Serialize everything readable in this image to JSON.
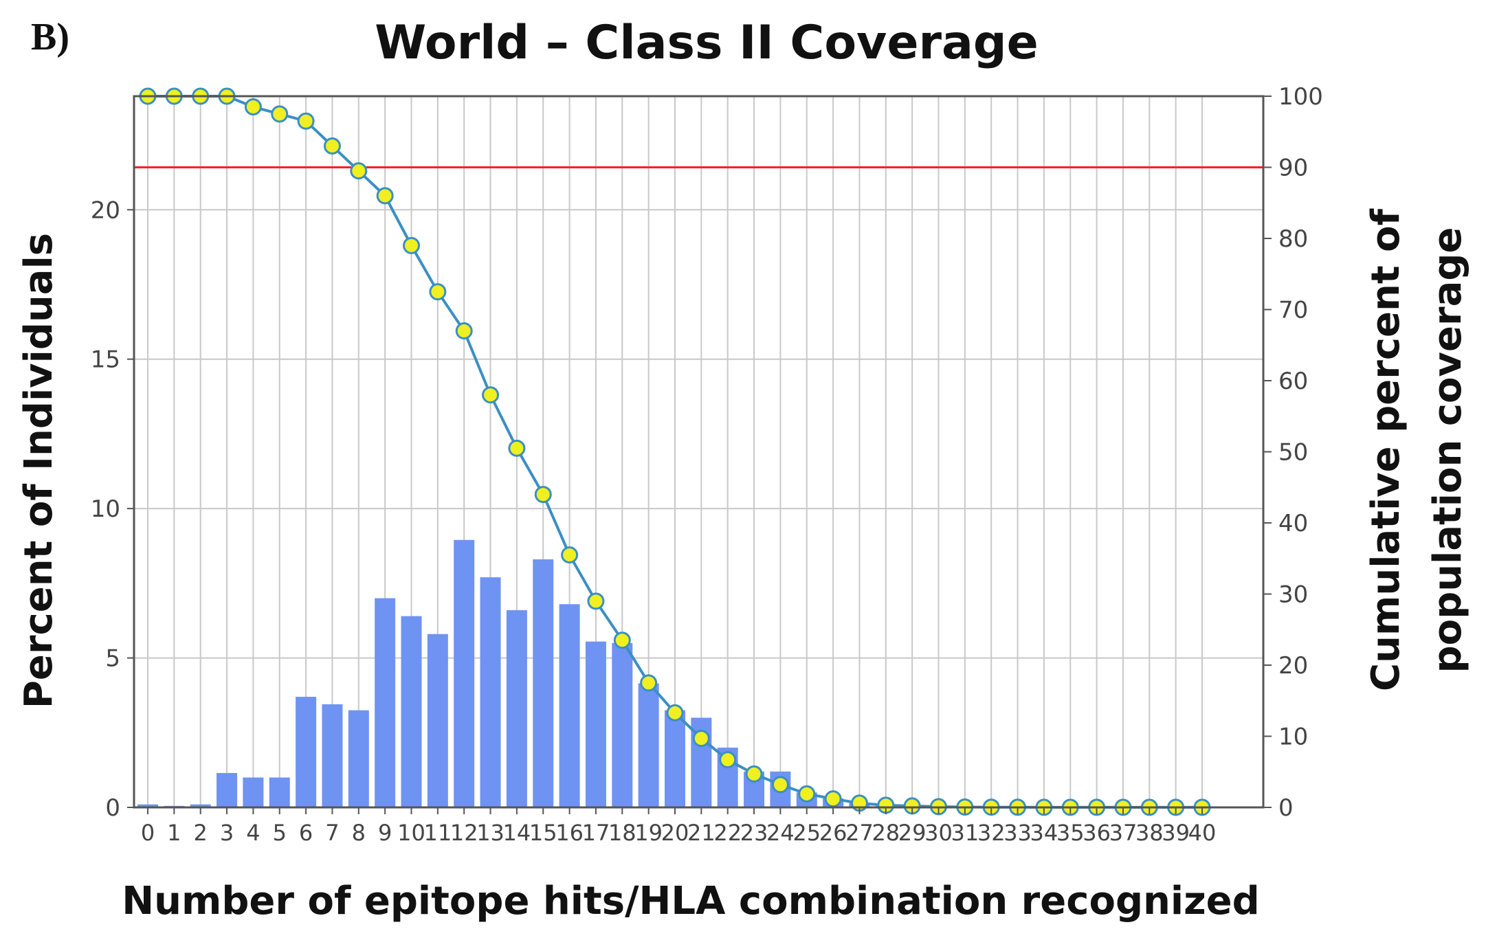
{
  "panel_label": "B)",
  "chart_data": {
    "type": "bar",
    "title": "World – Class II Coverage",
    "xlabel": "Number of epitope hits/HLA combination recognized",
    "ylabel": "Percent of Individuals",
    "y2label_line1": "Cumulative percent of",
    "y2label_line2": "population coverage",
    "categories": [
      "0",
      "1",
      "2",
      "3",
      "4",
      "5",
      "6",
      "7",
      "8",
      "9",
      "10",
      "11",
      "12",
      "13",
      "14",
      "15",
      "16",
      "17",
      "18",
      "19",
      "20",
      "21",
      "22",
      "23",
      "24",
      "25",
      "26",
      "27",
      "28",
      "29",
      "30",
      "31",
      "32",
      "33",
      "34",
      "35",
      "36",
      "37",
      "38",
      "39",
      "40"
    ],
    "ylim": [
      0,
      23.8
    ],
    "yticks": [
      0,
      5,
      10,
      15,
      20
    ],
    "y2lim": [
      0,
      100
    ],
    "y2ticks": [
      0,
      10,
      20,
      30,
      40,
      50,
      60,
      70,
      80,
      90,
      100
    ],
    "series": [
      {
        "name": "Percent of Individuals",
        "kind": "bar",
        "axis": "left",
        "color": "#6f93f2",
        "values": [
          0.1,
          0.05,
          0.1,
          1.15,
          1.0,
          1.0,
          3.7,
          3.45,
          3.25,
          7.0,
          6.4,
          5.8,
          8.95,
          7.7,
          6.6,
          8.3,
          6.8,
          5.55,
          5.5,
          4.15,
          3.25,
          3.0,
          2.0,
          1.2,
          1.2,
          0.5,
          0.3,
          0.15,
          0.05,
          0.05,
          0.02,
          0.01,
          0.01,
          0.01,
          0.01,
          0.01,
          0.01,
          0.01,
          0.01,
          0.01,
          0.01
        ]
      },
      {
        "name": "Cumulative percent of population coverage",
        "kind": "line",
        "axis": "right",
        "color": "#3a8fc4",
        "marker_color": "#f0f020",
        "values": [
          100,
          100,
          100,
          100,
          98.5,
          97.5,
          96.5,
          93,
          89.5,
          86,
          79,
          72.5,
          67,
          58,
          50.5,
          44,
          35.5,
          29,
          23.5,
          17.5,
          13.3,
          9.7,
          6.7,
          4.7,
          3.2,
          1.9,
          1.2,
          0.6,
          0.3,
          0.2,
          0.1,
          0.05,
          0.03,
          0.02,
          0.01,
          0.01,
          0.01,
          0.01,
          0.01,
          0.01,
          0.01
        ]
      }
    ],
    "threshold": {
      "axis": "right",
      "value": 90,
      "color": "#ff2020"
    },
    "grid": true
  }
}
